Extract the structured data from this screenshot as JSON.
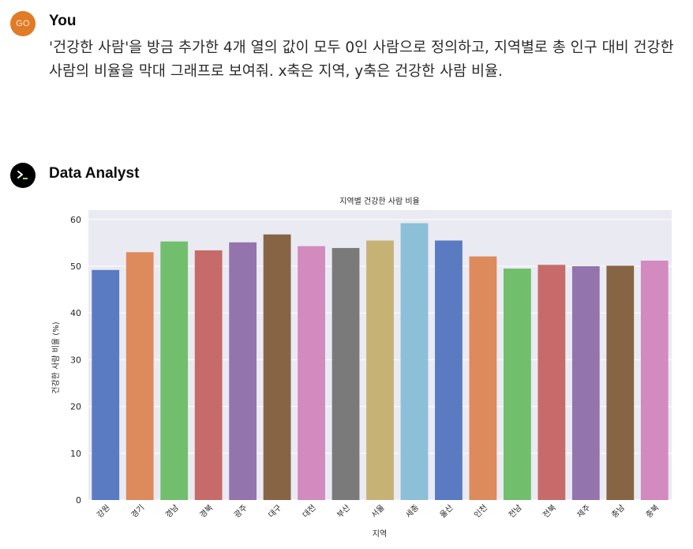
{
  "conversation": {
    "user": {
      "avatar_initials": "GO",
      "author": "You",
      "message": "'건강한 사람'을 방금 추가한 4개 열의 값이 모두 0인 사람으로 정의하고, 지역별로 총 인구 대비 건강한 사람의 비율을 막대 그래프로 보여줘. x축은 지역, y축은 건강한 사람 비율."
    },
    "assistant": {
      "author": "Data Analyst",
      "avatar_icon": "terminal-prompt-icon"
    }
  },
  "chart_data": {
    "type": "bar",
    "title": "지역별 건강한 사람 비율",
    "xlabel": "지역",
    "ylabel": "건강한 사람 비율 (%)",
    "ylim": [
      0,
      62
    ],
    "yticks": [
      0,
      10,
      20,
      30,
      40,
      50,
      60
    ],
    "grid": true,
    "legend": "none",
    "categories": [
      "강원",
      "경기",
      "경남",
      "경북",
      "광주",
      "대구",
      "대전",
      "부산",
      "서울",
      "세종",
      "울산",
      "인천",
      "전남",
      "전북",
      "제주",
      "충남",
      "충북"
    ],
    "values": [
      49.2,
      53.0,
      55.3,
      53.4,
      55.1,
      56.8,
      54.3,
      53.9,
      55.5,
      59.2,
      55.5,
      52.1,
      49.5,
      50.3,
      50.0,
      50.1,
      51.2
    ],
    "colors": [
      "#5a7bc1",
      "#dd8a5c",
      "#71bf6d",
      "#c76b6a",
      "#9474ac",
      "#876444",
      "#d38abf",
      "#7a7a7a",
      "#c7b275",
      "#8cbfd8",
      "#5a7bc1",
      "#dd8a5c",
      "#71bf6d",
      "#c76b6a",
      "#9474ac",
      "#876444",
      "#d38abf"
    ],
    "plot_background": "#eaeaf2",
    "grid_color": "#ffffff"
  }
}
